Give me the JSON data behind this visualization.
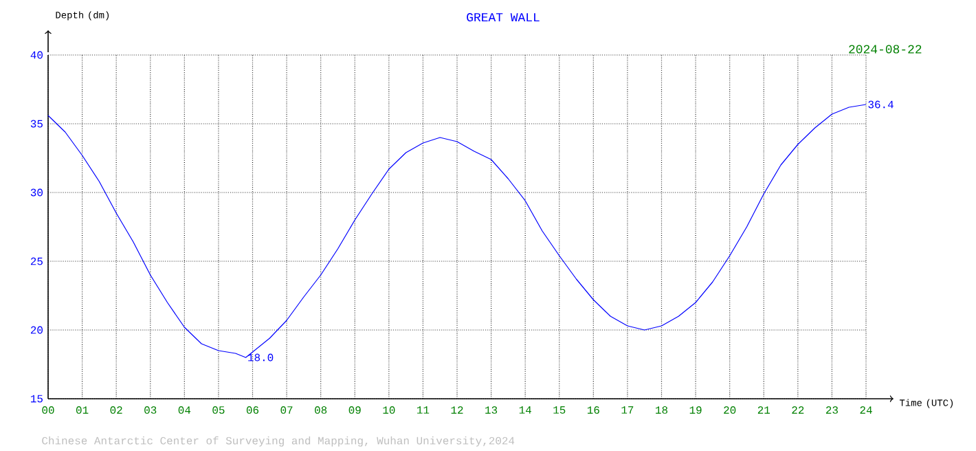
{
  "chart_data": {
    "type": "line",
    "title": "GREAT WALL",
    "subtitle": "2024-08-22",
    "xlabel": "Time (UTC)",
    "ylabel": "Depth (dm)",
    "x": [
      0,
      0.5,
      1,
      1.5,
      2,
      2.5,
      3,
      3.5,
      4,
      4.5,
      5,
      5.5,
      5.8,
      6,
      6.5,
      7,
      7.5,
      8,
      8.5,
      9,
      9.5,
      10,
      10.5,
      11,
      11.5,
      12,
      12.5,
      13,
      13.5,
      14,
      14.5,
      15,
      15.5,
      16,
      16.5,
      17,
      17.5,
      18,
      18.5,
      19,
      19.5,
      20,
      20.5,
      21,
      21.5,
      22,
      22.5,
      23,
      23.5,
      24
    ],
    "series": [
      {
        "color": "#0000ff",
        "values": [
          35.6,
          34.4,
          32.7,
          30.8,
          28.5,
          26.4,
          24.0,
          22.0,
          20.2,
          19.0,
          18.5,
          18.3,
          18.0,
          18.4,
          19.4,
          20.7,
          22.4,
          24.0,
          25.9,
          28.0,
          29.9,
          31.7,
          32.9,
          33.6,
          34.0,
          33.7,
          33.0,
          32.4,
          31.0,
          29.4,
          27.2,
          25.4,
          23.7,
          22.2,
          21.0,
          20.3,
          20.0,
          20.3,
          21.0,
          22.0,
          23.5,
          25.4,
          27.5,
          29.9,
          32.0,
          33.5,
          34.7,
          35.7,
          36.2,
          36.4
        ]
      }
    ],
    "xlim": [
      0,
      24
    ],
    "xticks": [
      {
        "value": 0,
        "label": "00"
      },
      {
        "value": 1,
        "label": "01"
      },
      {
        "value": 2,
        "label": "02"
      },
      {
        "value": 3,
        "label": "03"
      },
      {
        "value": 4,
        "label": "04"
      },
      {
        "value": 5,
        "label": "05"
      },
      {
        "value": 6,
        "label": "06"
      },
      {
        "value": 7,
        "label": "07"
      },
      {
        "value": 8,
        "label": "08"
      },
      {
        "value": 9,
        "label": "09"
      },
      {
        "value": 10,
        "label": "10"
      },
      {
        "value": 11,
        "label": "11"
      },
      {
        "value": 12,
        "label": "12"
      },
      {
        "value": 13,
        "label": "13"
      },
      {
        "value": 14,
        "label": "14"
      },
      {
        "value": 15,
        "label": "15"
      },
      {
        "value": 16,
        "label": "16"
      },
      {
        "value": 17,
        "label": "17"
      },
      {
        "value": 18,
        "label": "18"
      },
      {
        "value": 19,
        "label": "19"
      },
      {
        "value": 20,
        "label": "20"
      },
      {
        "value": 21,
        "label": "21"
      },
      {
        "value": 22,
        "label": "22"
      },
      {
        "value": 23,
        "label": "23"
      },
      {
        "value": 24,
        "label": "24"
      }
    ],
    "ylim": [
      15,
      40
    ],
    "yticks": [
      15,
      20,
      25,
      30,
      35,
      40
    ],
    "grid": true,
    "marker": "none",
    "line_style": "solid",
    "annotations": [
      {
        "text": "18.0",
        "x": 5.8,
        "y": 18.0
      },
      {
        "text": "36.4",
        "x": 24,
        "y": 36.4
      },
      "Chinese Antarctic Center of Surveying and Mapping, Wuhan University,2024"
    ]
  }
}
